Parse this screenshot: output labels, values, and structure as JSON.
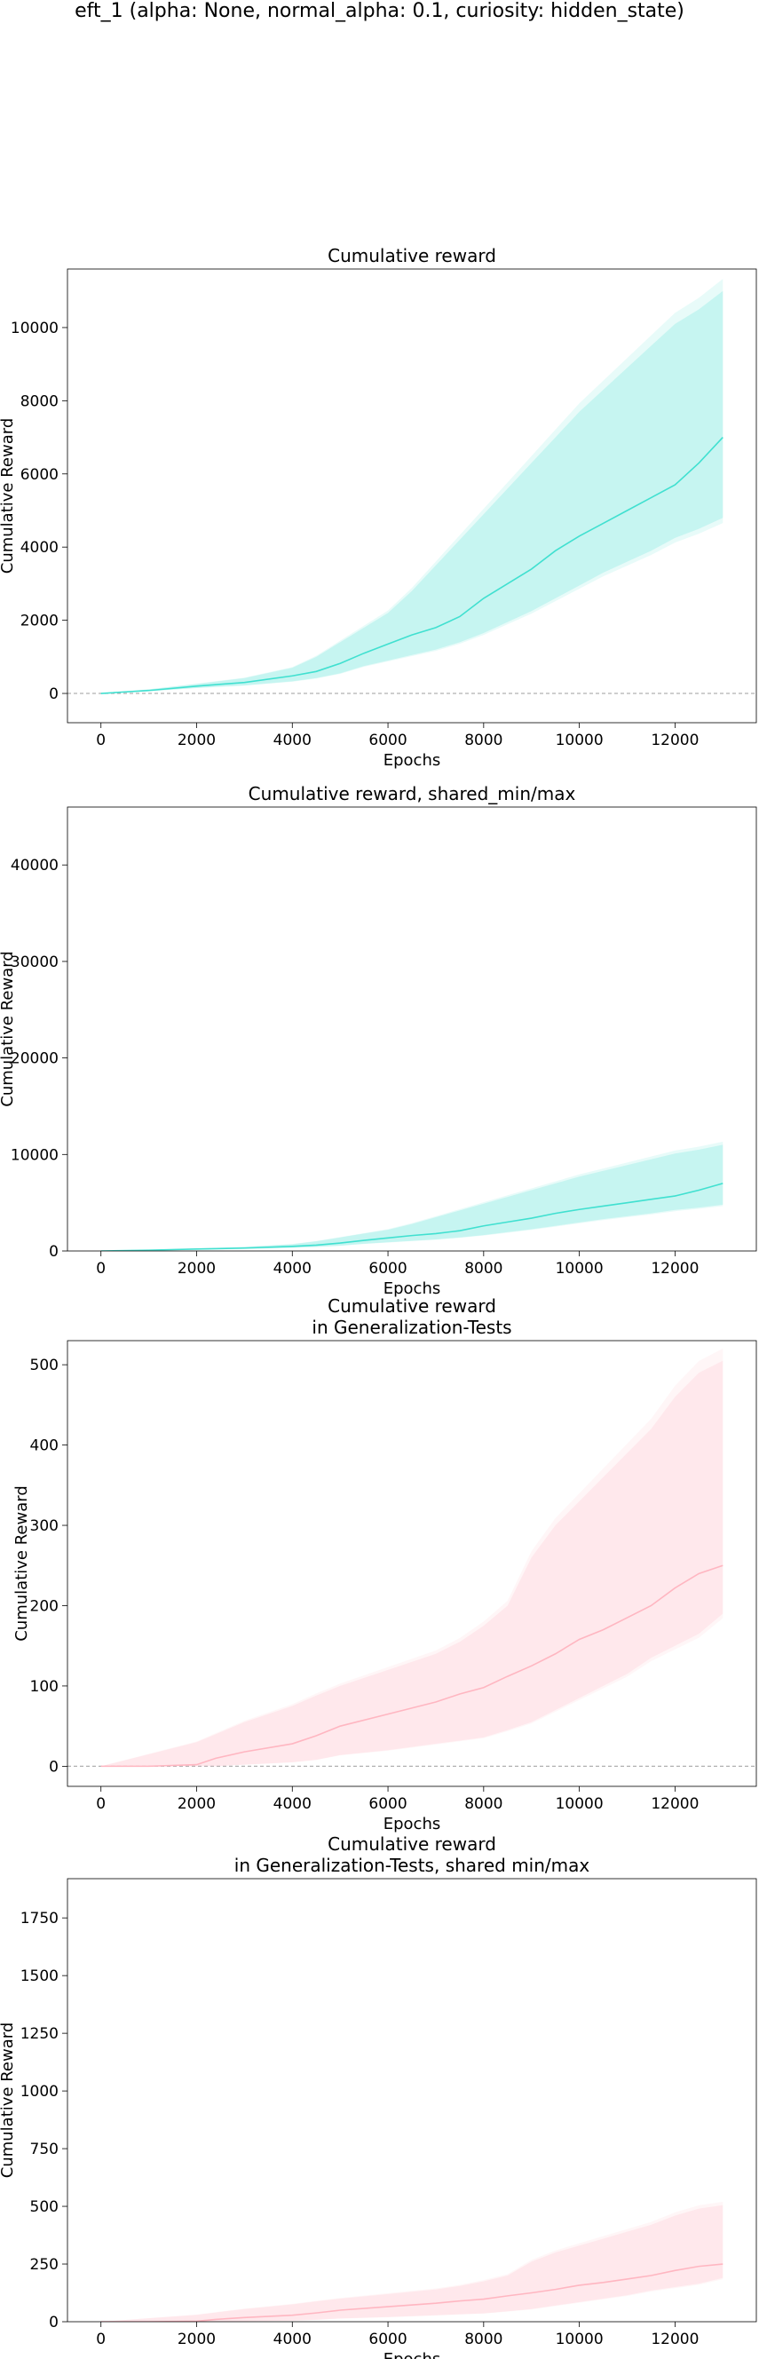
{
  "suptitle": "eft_1 (alpha: None, normal_alpha: 0.1, curiosity: hidden_state)",
  "colors": {
    "train": "#40e0d0",
    "test": "#ffb6c1",
    "zero_line": "#b0b0b0",
    "frame": "#000000"
  },
  "chart_data": [
    {
      "type": "line",
      "title": "Cumulative reward",
      "xlabel": "Epochs",
      "ylabel": "Cumulative Reward",
      "xlim": [
        -700,
        13700
      ],
      "ylim": [
        -800,
        11600
      ],
      "xticks": [
        0,
        2000,
        4000,
        6000,
        8000,
        10000,
        12000
      ],
      "yticks": [
        0,
        2000,
        4000,
        6000,
        8000,
        10000
      ],
      "grid": false,
      "zero_line": true,
      "series": [
        {
          "color": "#40e0d0",
          "x": [
            0,
            1000,
            2000,
            3000,
            4000,
            4500,
            5000,
            5500,
            6000,
            6500,
            7000,
            7500,
            8000,
            8500,
            9000,
            9500,
            10000,
            10500,
            11000,
            11500,
            12000,
            12500,
            13000
          ],
          "mean": [
            0,
            80,
            200,
            300,
            480,
            600,
            820,
            1100,
            1350,
            1600,
            1800,
            2100,
            2600,
            3000,
            3400,
            3900,
            4300,
            4650,
            5000,
            5350,
            5700,
            6300,
            7000
          ],
          "low": [
            0,
            60,
            150,
            220,
            330,
            420,
            550,
            750,
            900,
            1050,
            1200,
            1400,
            1650,
            1950,
            2250,
            2600,
            2950,
            3300,
            3600,
            3900,
            4250,
            4500,
            4800
          ],
          "high": [
            0,
            110,
            260,
            420,
            700,
            1000,
            1400,
            1800,
            2200,
            2800,
            3500,
            4200,
            4900,
            5600,
            6300,
            7000,
            7700,
            8300,
            8900,
            9500,
            10100,
            10500,
            11000
          ]
        }
      ]
    },
    {
      "type": "line",
      "title": "Cumulative reward, shared_min/max",
      "xlabel": "Epochs",
      "ylabel": "Cumulative Reward",
      "xlim": [
        -700,
        13700
      ],
      "ylim": [
        0,
        46000
      ],
      "xticks": [
        0,
        2000,
        4000,
        6000,
        8000,
        10000,
        12000
      ],
      "yticks": [
        0,
        10000,
        20000,
        30000,
        40000
      ],
      "grid": false,
      "zero_line": false,
      "series": [
        {
          "color": "#40e0d0",
          "x": [
            0,
            1000,
            2000,
            3000,
            4000,
            4500,
            5000,
            5500,
            6000,
            6500,
            7000,
            7500,
            8000,
            8500,
            9000,
            9500,
            10000,
            10500,
            11000,
            11500,
            12000,
            12500,
            13000
          ],
          "mean": [
            0,
            80,
            200,
            300,
            480,
            600,
            820,
            1100,
            1350,
            1600,
            1800,
            2100,
            2600,
            3000,
            3400,
            3900,
            4300,
            4650,
            5000,
            5350,
            5700,
            6300,
            7000
          ],
          "low": [
            0,
            60,
            150,
            220,
            330,
            420,
            550,
            750,
            900,
            1050,
            1200,
            1400,
            1650,
            1950,
            2250,
            2600,
            2950,
            3300,
            3600,
            3900,
            4250,
            4500,
            4800
          ],
          "high": [
            0,
            110,
            260,
            420,
            700,
            1000,
            1400,
            1800,
            2200,
            2800,
            3500,
            4200,
            4900,
            5600,
            6300,
            7000,
            7700,
            8300,
            8900,
            9500,
            10100,
            10500,
            11000
          ]
        }
      ]
    },
    {
      "type": "line",
      "title": "Cumulative reward\nin Generalization-Tests",
      "xlabel": "Epochs",
      "ylabel": "Cumulative Reward",
      "xlim": [
        -700,
        13700
      ],
      "ylim": [
        -25,
        530
      ],
      "xticks": [
        0,
        2000,
        4000,
        6000,
        8000,
        10000,
        12000
      ],
      "yticks": [
        0,
        100,
        200,
        300,
        400,
        500
      ],
      "grid": false,
      "zero_line": true,
      "series": [
        {
          "color": "#ffb6c1",
          "x": [
            0,
            1000,
            2000,
            2400,
            3000,
            4000,
            4500,
            5000,
            6000,
            7000,
            7500,
            8000,
            8500,
            9000,
            9500,
            10000,
            10500,
            11000,
            11500,
            12000,
            12500,
            13000
          ],
          "mean": [
            0,
            0,
            2,
            10,
            18,
            28,
            38,
            50,
            65,
            80,
            90,
            98,
            112,
            125,
            140,
            158,
            170,
            185,
            200,
            222,
            240,
            250
          ],
          "low": [
            0,
            0,
            0,
            0,
            2,
            5,
            8,
            14,
            20,
            28,
            32,
            36,
            45,
            55,
            70,
            85,
            100,
            115,
            135,
            150,
            165,
            190
          ],
          "high": [
            0,
            15,
            30,
            40,
            55,
            75,
            88,
            100,
            120,
            140,
            155,
            175,
            200,
            260,
            300,
            330,
            360,
            390,
            420,
            460,
            490,
            505
          ]
        }
      ]
    },
    {
      "type": "line",
      "title": "Cumulative reward\nin Generalization-Tests, shared min/max",
      "xlabel": "Epochs",
      "ylabel": "Cumulative Reward",
      "xlim": [
        -700,
        13700
      ],
      "ylim": [
        0,
        1920
      ],
      "xticks": [
        0,
        2000,
        4000,
        6000,
        8000,
        10000,
        12000
      ],
      "yticks": [
        0,
        250,
        500,
        750,
        1000,
        1250,
        1500,
        1750
      ],
      "grid": false,
      "zero_line": false,
      "series": [
        {
          "color": "#ffb6c1",
          "x": [
            0,
            1000,
            2000,
            2400,
            3000,
            4000,
            4500,
            5000,
            6000,
            7000,
            7500,
            8000,
            8500,
            9000,
            9500,
            10000,
            10500,
            11000,
            11500,
            12000,
            12500,
            13000
          ],
          "mean": [
            0,
            0,
            2,
            10,
            18,
            28,
            38,
            50,
            65,
            80,
            90,
            98,
            112,
            125,
            140,
            158,
            170,
            185,
            200,
            222,
            240,
            250
          ],
          "low": [
            0,
            0,
            0,
            0,
            2,
            5,
            8,
            14,
            20,
            28,
            32,
            36,
            45,
            55,
            70,
            85,
            100,
            115,
            135,
            150,
            165,
            190
          ],
          "high": [
            0,
            15,
            30,
            40,
            55,
            75,
            88,
            100,
            120,
            140,
            155,
            175,
            200,
            260,
            300,
            330,
            360,
            390,
            420,
            460,
            490,
            505
          ]
        }
      ]
    }
  ]
}
